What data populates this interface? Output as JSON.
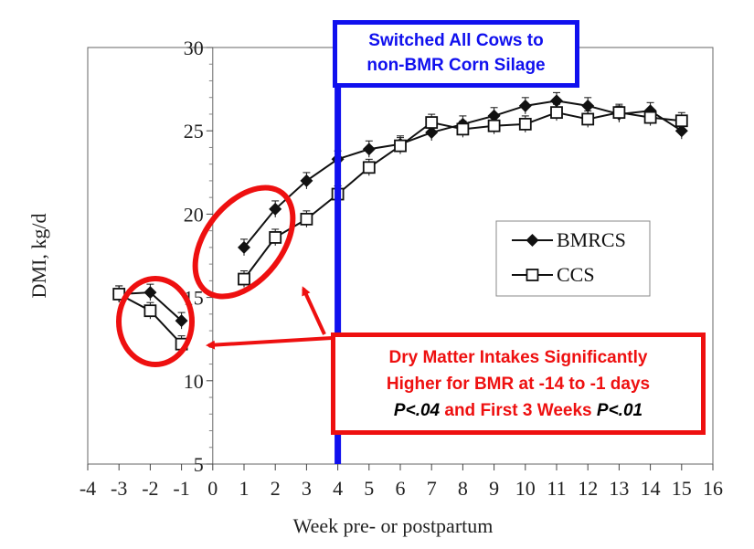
{
  "chart_data": {
    "type": "line",
    "xlabel": "Week pre- or postpartum",
    "ylabel": "DMI, kg/d",
    "xlim": [
      -4,
      16
    ],
    "ylim": [
      5,
      30
    ],
    "xticks": [
      "-4",
      "-3",
      "-2",
      "-1",
      "0",
      "1",
      "2",
      "3",
      "4",
      "5",
      "6",
      "7",
      "8",
      "9",
      "10",
      "11",
      "12",
      "13",
      "14",
      "15",
      "16"
    ],
    "yticks": [
      "5",
      "10",
      "15",
      "20",
      "25",
      "30"
    ],
    "grid": false,
    "legend_position": "right-middle",
    "series": [
      {
        "name": "BMRCS",
        "marker": "filled-diamond",
        "color": "#111111",
        "x": [
          -3,
          -2,
          -1,
          1,
          2,
          3,
          4,
          5,
          6,
          7,
          8,
          9,
          10,
          11,
          12,
          13,
          14,
          15
        ],
        "y": [
          15.2,
          15.3,
          13.6,
          18.0,
          20.3,
          22.0,
          23.3,
          23.9,
          24.2,
          24.9,
          25.4,
          25.9,
          26.5,
          26.8,
          26.5,
          26.0,
          26.2,
          25.0
        ]
      },
      {
        "name": "CCS",
        "marker": "open-square",
        "color": "#111111",
        "x": [
          -3,
          -2,
          -1,
          1,
          2,
          3,
          4,
          5,
          6,
          7,
          8,
          9,
          10,
          11,
          12,
          13,
          14,
          15
        ],
        "y": [
          15.2,
          14.2,
          12.2,
          16.1,
          18.6,
          19.7,
          21.2,
          22.8,
          24.1,
          25.5,
          25.1,
          25.3,
          25.4,
          26.1,
          25.7,
          26.1,
          25.8,
          25.6
        ]
      }
    ],
    "annotations": {
      "blue_box_lines": [
        "Switched All Cows to",
        "non-BMR Corn Silage"
      ],
      "red_box_line1": "Dry Matter Intakes Significantly",
      "red_box_line2": "Higher for BMR at -14 to -1 days",
      "red_box_p1": "P<.04",
      "red_box_mid": " and First 3 Weeks ",
      "red_box_p2": "P<.01"
    },
    "colors": {
      "switch_line": "#1010ee",
      "highlight": "#ee1010"
    }
  }
}
